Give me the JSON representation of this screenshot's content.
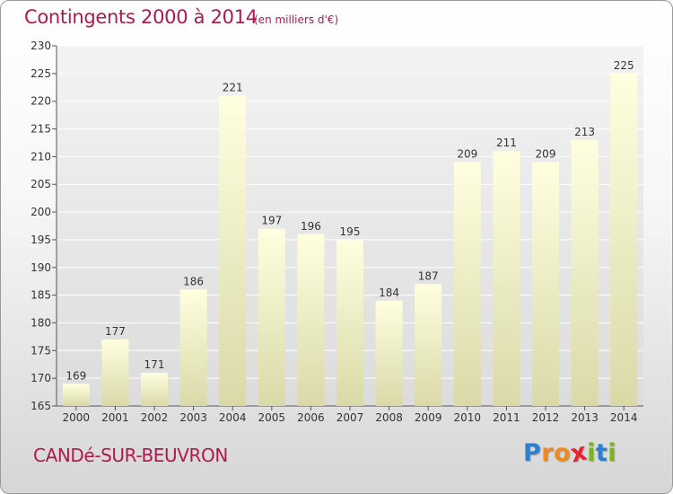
{
  "header": {
    "title": "Contingents 2000 à 2014",
    "subtitle": "(en milliers d'€)"
  },
  "footer": {
    "commune": "CANDé-SUR-BEUVRON",
    "logo_letters": [
      "P",
      "r",
      "o",
      "x",
      "i",
      "t",
      "i"
    ],
    "logo_colors": [
      "#2e7fd0",
      "#f08a1c",
      "#f08a1c",
      "#e8232e",
      "#7ab51d",
      "#2e7fd0",
      "#7ab51d"
    ]
  },
  "colors": {
    "title": "#b0184e",
    "bar_top": "#ffffe0",
    "bar_bottom": "#d9d9a8",
    "axis": "#555555",
    "grid": "#ffffff"
  },
  "chart_data": {
    "type": "bar",
    "categories": [
      "2000",
      "2001",
      "2002",
      "2003",
      "2004",
      "2005",
      "2006",
      "2007",
      "2008",
      "2009",
      "2010",
      "2011",
      "2012",
      "2013",
      "2014"
    ],
    "values": [
      169,
      177,
      171,
      186,
      221,
      197,
      196,
      195,
      184,
      187,
      209,
      211,
      209,
      213,
      225
    ],
    "ylim": [
      165,
      230
    ],
    "yticks": [
      165,
      170,
      175,
      180,
      185,
      190,
      195,
      200,
      205,
      210,
      215,
      220,
      225,
      230
    ],
    "title": "Contingents 2000 à 2014",
    "xlabel": "",
    "ylabel": "",
    "grid": true,
    "data_labels": true
  }
}
